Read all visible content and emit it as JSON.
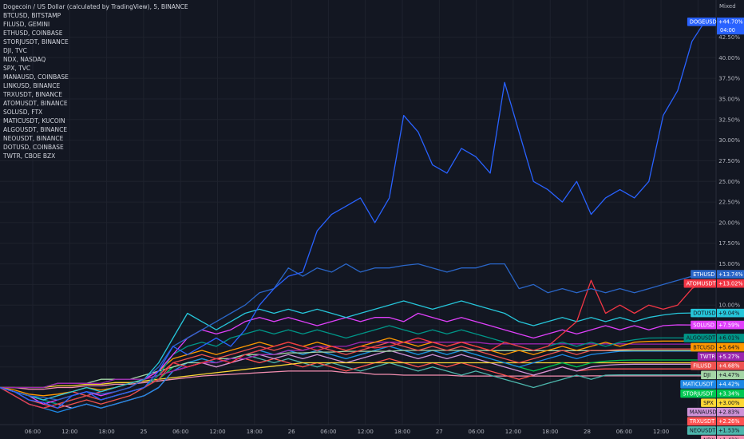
{
  "legend": [
    "Dogecoin / US Dollar (calculated by TradingView), 5, BINANCE",
    "BTCUSD, BITSTAMP",
    "FILUSD, GEMINI",
    "ETHUSD, COINBASE",
    "STORJUSDT, BINANCE",
    "DJI, TVC",
    "NDX, NASDAQ",
    "SPX, TVC",
    "MANAUSD, COINBASE",
    "LINKUSD, BINANCE",
    "TRXUSDT, BINANCE",
    "ATOMUSDT, BINANCE",
    "SOLUSD, FTX",
    "MATICUSDT, KUCOIN",
    "ALGOUSDT, BINANCE",
    "NEOUSDT, BINANCE",
    "DOTUSD, COINBASE",
    "TWTR, CBOE BZX"
  ],
  "scale_mode": "Mixed",
  "chart_data": {
    "type": "line",
    "ylabel": "",
    "ylim": [
      -4.5,
      47.0
    ],
    "y_ticks": [
      "2.50%",
      "5.00%",
      "7.50%",
      "10.00%",
      "12.50%",
      "15.00%",
      "17.50%",
      "20.00%",
      "22.50%",
      "25.00%",
      "27.50%",
      "30.00%",
      "32.50%",
      "35.00%",
      "37.50%",
      "40.00%",
      "42.50%"
    ],
    "y_tick_values": [
      2.5,
      5,
      7.5,
      10,
      12.5,
      15,
      17.5,
      20,
      22.5,
      25,
      27.5,
      30,
      32.5,
      35,
      37.5,
      40,
      42.5
    ],
    "x_ticks": [
      "06:00",
      "12:00",
      "18:00",
      "25",
      "06:00",
      "12:00",
      "18:00",
      "26",
      "06:00",
      "12:00",
      "18:00",
      "27",
      "06:00",
      "12:00",
      "18:00",
      "28",
      "06:00",
      "12:00",
      "17:"
    ],
    "series": [
      {
        "name": "DOGEUSD",
        "color": "#2962ff",
        "last_label": "+44.70%",
        "timer": "04:00",
        "values": [
          0,
          -0.5,
          -1.5,
          -1.8,
          -2.5,
          -1,
          -0.5,
          -1.5,
          -1,
          -0.5,
          0,
          2,
          5,
          4,
          5,
          6,
          5,
          7,
          10,
          12,
          13.5,
          14,
          19,
          21,
          22,
          23,
          20,
          23,
          33,
          31,
          27,
          26,
          29,
          28,
          26,
          37,
          31,
          25,
          24,
          22.5,
          25,
          21,
          23,
          24,
          23,
          25,
          33,
          36,
          42,
          44.7
        ]
      },
      {
        "name": "ETHUSD",
        "color": "#2a66c8",
        "last_label": "+13.74%",
        "values": [
          0,
          -0.5,
          -1,
          -1.2,
          -1.5,
          -1,
          -0.5,
          -0.8,
          -0.5,
          0,
          1,
          2.5,
          5,
          6,
          7,
          8,
          9,
          10,
          11.5,
          12,
          14.5,
          13.5,
          14.5,
          14,
          15,
          14,
          14.5,
          14.5,
          14.8,
          15,
          14.5,
          14,
          14.5,
          14.5,
          15,
          15,
          12,
          12.5,
          11.5,
          12,
          11.5,
          12,
          11.5,
          12,
          11.5,
          12,
          12.5,
          13,
          13.5,
          13.74
        ]
      },
      {
        "name": "ATOMUSDT",
        "color": "#f23645",
        "last_label": "+13.02%",
        "values": [
          0,
          -1,
          -2,
          -2.5,
          -2,
          -1.5,
          -1,
          -1.5,
          -1,
          -0.5,
          0,
          1,
          3,
          2.5,
          3,
          3.5,
          3,
          4,
          4.5,
          5,
          5.5,
          5,
          4.5,
          5,
          4.5,
          5,
          4.8,
          5,
          5.5,
          6,
          5.5,
          5,
          5.5,
          5,
          4.5,
          5.5,
          5,
          4.5,
          5,
          6.5,
          8,
          13,
          9,
          10,
          9,
          10,
          9.5,
          10,
          12,
          13.02
        ]
      },
      {
        "name": "DOTUSD",
        "color": "#26c6da",
        "last_label": "+9.04%",
        "values": [
          0,
          -0.5,
          -1,
          -1.5,
          -1,
          -0.5,
          0,
          -0.5,
          0,
          0.5,
          1,
          3,
          6,
          9,
          8,
          7,
          8,
          9,
          9.5,
          9,
          9.5,
          9,
          9.5,
          9,
          8.5,
          9,
          9.5,
          10,
          10.5,
          10,
          9.5,
          10,
          10.5,
          10,
          9.5,
          9,
          8,
          7.5,
          8,
          8.5,
          8,
          8.5,
          8,
          8.5,
          8,
          8.5,
          8.8,
          9,
          9.04,
          9.04
        ]
      },
      {
        "name": "SOLUSD",
        "color": "#e040fb",
        "last_label": "+7.59%",
        "values": [
          0,
          -0.5,
          -1,
          -2,
          -1.5,
          -1,
          -0.5,
          -1,
          -0.5,
          0,
          1,
          2,
          4,
          6,
          7,
          6.5,
          7,
          8,
          8.5,
          8,
          8.5,
          8,
          7.5,
          8,
          8.5,
          8,
          8.5,
          8.5,
          8,
          9,
          8.5,
          8,
          8.5,
          8,
          7.5,
          7,
          6.5,
          6,
          6.5,
          7,
          6.5,
          7,
          7.5,
          7,
          7.5,
          7,
          7.5,
          7.6,
          7.59,
          7.59
        ]
      },
      {
        "name": "ALGOUSDT",
        "color": "#009688",
        "last_label": "+6.01%",
        "values": [
          0,
          -0.5,
          -1,
          -1.5,
          -2,
          -1.5,
          -1,
          -1.5,
          -1,
          -0.5,
          0,
          1.5,
          4,
          5,
          5.5,
          5,
          6,
          6.5,
          7,
          6.5,
          7,
          6.5,
          7,
          6.5,
          6,
          6.5,
          7,
          7.5,
          7,
          6.5,
          7,
          6.5,
          7,
          6.5,
          6,
          5.5,
          5,
          4.5,
          5,
          5.5,
          5,
          5.5,
          5,
          5.5,
          5.8,
          6,
          6.01,
          6.01,
          6.01,
          6.01
        ]
      },
      {
        "name": "BTCUSD",
        "color": "#ff9800",
        "last_label": "+5.64%",
        "values": [
          0,
          -0.3,
          -0.8,
          -1,
          -0.8,
          -0.5,
          0,
          -0.3,
          0,
          0.5,
          1,
          2,
          3.5,
          4,
          4.5,
          4,
          4.5,
          5,
          5.5,
          5,
          5.5,
          5,
          5.5,
          5,
          4.5,
          5,
          5.5,
          6,
          5.5,
          5,
          5.5,
          5,
          5.5,
          5,
          4.5,
          4,
          4.5,
          4,
          4.5,
          5,
          4.5,
          5,
          5.5,
          5,
          5.5,
          5.6,
          5.64,
          5.64,
          5.64,
          5.64
        ]
      },
      {
        "name": "TWTR",
        "color": "#9c27b0",
        "last_label": "+5.27%",
        "values": [
          0,
          0,
          0,
          0,
          0.5,
          0.5,
          0.5,
          0.5,
          1,
          1,
          1,
          1.5,
          2,
          2.5,
          3,
          3,
          3.5,
          3.5,
          4,
          4,
          4.5,
          4.5,
          5,
          5,
          5,
          5.5,
          5.5,
          5.5,
          5.5,
          5.5,
          5.5,
          5.5,
          5.5,
          5.5,
          5.3,
          5.3,
          5.3,
          5.3,
          5.3,
          5.3,
          5.3,
          5.3,
          5.3,
          5.3,
          5.27,
          5.27,
          5.27,
          5.27,
          5.27,
          5.27
        ]
      },
      {
        "name": "FILUSD",
        "color": "#ef5350",
        "last_label": "+4.68%",
        "values": [
          0,
          -0.5,
          -1.5,
          -2,
          -2.5,
          -2,
          -1.5,
          -2,
          -1.5,
          -1,
          0,
          1.5,
          3,
          3.5,
          4,
          3.5,
          4,
          4.5,
          5,
          4.5,
          5,
          4.5,
          5,
          4.5,
          4,
          4.5,
          5,
          5.5,
          5,
          4.5,
          5,
          4.5,
          5,
          4.5,
          4,
          3.5,
          3,
          3.5,
          4,
          4.5,
          4,
          4.5,
          4.5,
          4.6,
          4.68,
          4.68,
          4.68,
          4.68,
          4.68,
          4.68
        ]
      },
      {
        "name": "DJI",
        "color": "#a5d6a7",
        "last_label": "+4.47%",
        "values": [
          0,
          0,
          0,
          0,
          0.5,
          0.5,
          0.5,
          1,
          1,
          1,
          1.5,
          2,
          2.5,
          3,
          3,
          3.5,
          3.5,
          4,
          4,
          4,
          4.2,
          4.2,
          4.3,
          4.3,
          4.4,
          4.4,
          4.4,
          4.4,
          4.5,
          4.5,
          4.5,
          4.5,
          4.5,
          4.5,
          4.47,
          4.47,
          4.47,
          4.47,
          4.47,
          4.47,
          4.47,
          4.47,
          4.47,
          4.47,
          4.47,
          4.47,
          4.47,
          4.47,
          4.47,
          4.47
        ]
      },
      {
        "name": "MATICUSDT",
        "color": "#1e88e5",
        "last_label": "+4.42%",
        "values": [
          0,
          -1,
          -2,
          -2.5,
          -3,
          -2.5,
          -2,
          -2.5,
          -2,
          -1.5,
          -1,
          0,
          2,
          3,
          3.5,
          3,
          3.5,
          4,
          4.5,
          4,
          4.5,
          4,
          4.5,
          4,
          3.5,
          4,
          4.5,
          5,
          4.5,
          4,
          4.5,
          4,
          4.5,
          4,
          3.5,
          3,
          2.5,
          3,
          3.5,
          4,
          3.5,
          4,
          4.2,
          4.4,
          4.42,
          4.42,
          4.42,
          4.42,
          4.42,
          4.42
        ]
      },
      {
        "name": "STORJUSDT",
        "color": "#00c853",
        "last_label": "+3.34%",
        "values": [
          0,
          -0.5,
          -1,
          -1.5,
          -2,
          -1.5,
          -1,
          -1.5,
          -1,
          -0.5,
          0,
          1,
          2.5,
          3,
          3.5,
          3,
          3.5,
          4,
          4.5,
          4,
          4.5,
          4,
          4.5,
          4,
          3.5,
          4,
          4.5,
          5,
          4.5,
          4,
          4.5,
          4,
          4.5,
          4,
          3.5,
          3,
          2.5,
          2,
          2.5,
          3,
          2.5,
          3,
          3.2,
          3.3,
          3.34,
          3.34,
          3.34,
          3.34,
          3.34,
          3.34
        ]
      },
      {
        "name": "SPX",
        "color": "#fdd835",
        "last_label": "+3.00%",
        "values": [
          0,
          0,
          0,
          0,
          0.2,
          0.2,
          0.4,
          0.4,
          0.6,
          0.6,
          0.8,
          1,
          1.2,
          1.4,
          1.6,
          1.8,
          2,
          2.2,
          2.4,
          2.6,
          2.8,
          3,
          3,
          3,
          3,
          3,
          3,
          3,
          3,
          3,
          3,
          3,
          3,
          3,
          3,
          3,
          3,
          3,
          3,
          3,
          3,
          3,
          3,
          3,
          3,
          3,
          3,
          3,
          3,
          3
        ]
      },
      {
        "name": "MANAUSD",
        "color": "#ce93d8",
        "last_label": "+2.83%",
        "values": [
          0,
          -0.5,
          -1,
          -1.5,
          -2,
          -2.5,
          -2,
          -2.5,
          -2,
          -1.5,
          -1,
          0,
          2,
          2.5,
          3,
          2.5,
          3,
          3.5,
          4,
          3.5,
          4,
          3.5,
          4,
          3.5,
          3,
          3.5,
          4,
          4.5,
          4,
          3.5,
          4,
          3.5,
          4,
          3.5,
          3,
          2.5,
          2,
          1.5,
          2,
          2.5,
          2,
          2.5,
          2.7,
          2.8,
          2.83,
          2.83,
          2.83,
          2.83,
          2.83,
          2.83
        ]
      },
      {
        "name": "TRXUSDT",
        "color": "#ff5252",
        "last_label": "+2.26%",
        "values": [
          0,
          -0.5,
          -1,
          -1.5,
          -1,
          -0.5,
          -1,
          -0.5,
          0,
          0.5,
          1,
          1.5,
          2,
          2.5,
          3,
          2.5,
          3,
          3.5,
          3,
          3.5,
          3,
          2.5,
          3,
          2.5,
          2,
          2.5,
          3,
          3.5,
          3,
          2.5,
          3,
          2.5,
          3,
          2.5,
          2,
          1.5,
          1,
          1.5,
          2,
          2.5,
          2,
          2.2,
          2.26,
          2.26,
          2.26,
          2.26,
          2.26,
          2.26,
          2.26,
          2.26
        ]
      },
      {
        "name": "NEOUSDT",
        "color": "#4db6ac",
        "last_label": "+1.53%",
        "values": [
          0,
          -1,
          -2,
          -2.5,
          -2,
          -1.5,
          -1,
          -1.5,
          -1,
          -0.5,
          0,
          1,
          2.5,
          3,
          3.5,
          3,
          3.5,
          4,
          3.5,
          3,
          3.5,
          3,
          2.5,
          3,
          2.5,
          2,
          2.5,
          3,
          2.5,
          2,
          2.5,
          2,
          1.5,
          2,
          1.5,
          1,
          0.5,
          0,
          0.5,
          1,
          1.5,
          1,
          1.5,
          1.53,
          1.53,
          1.53,
          1.53,
          1.53,
          1.53,
          1.53
        ]
      },
      {
        "name": "NDX",
        "color": "#f48fb1",
        "last_label": "+1.41%",
        "values": [
          0,
          0,
          -0.2,
          -0.2,
          0,
          0,
          0.2,
          0.2,
          0.4,
          0.4,
          0.6,
          0.8,
          1,
          1.2,
          1.4,
          1.5,
          1.6,
          1.7,
          1.8,
          1.9,
          2,
          2,
          2,
          2,
          1.8,
          1.8,
          1.6,
          1.6,
          1.5,
          1.5,
          1.5,
          1.5,
          1.4,
          1.4,
          1.4,
          1.4,
          1.4,
          1.4,
          1.4,
          1.4,
          1.4,
          1.41,
          1.41,
          1.41,
          1.41,
          1.41,
          1.41,
          1.41,
          1.41,
          1.41
        ]
      }
    ]
  }
}
